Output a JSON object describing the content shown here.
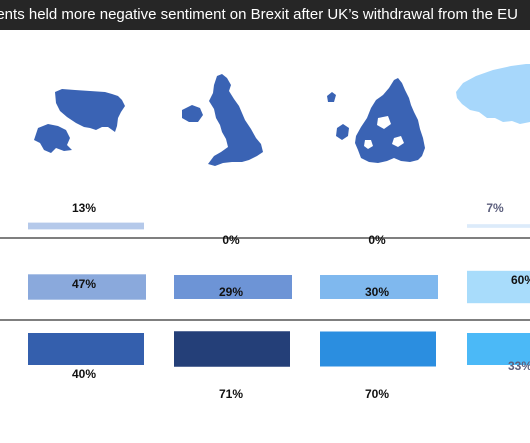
{
  "title": "dents held more negative sentiment on Brexit after UK’s withdrawal from the EU",
  "colors": {
    "title_background": "#262626",
    "title_text": "#ffffff",
    "map_fill": "#3a63b4",
    "divider": "#555555"
  },
  "regions": [
    {
      "icon": "usa-map-icon"
    },
    {
      "icon": "uk-map-icon"
    },
    {
      "icon": "europe-map-icon"
    },
    {
      "icon": "asia-map-icon"
    }
  ],
  "chart_data": {
    "type": "bar",
    "title": "dents held more negative sentiment on Brexit after UK’s withdrawal from the EU",
    "categories": [
      "",
      "",
      "",
      ""
    ],
    "ylim": [
      0,
      100
    ],
    "grid": false,
    "legend": "none",
    "series": [
      {
        "values": [
          13,
          0,
          0,
          7
        ],
        "labels": [
          "13%",
          "0%",
          "0%",
          "7%"
        ],
        "colors": [
          "#b5c9ea",
          "#b5c9ea",
          "#b5c9ea",
          "#dcebfa"
        ]
      },
      {
        "values": [
          47,
          29,
          30,
          60
        ],
        "labels": [
          "47%",
          "29%",
          "30%",
          "60%"
        ],
        "colors": [
          "#8aa9dc",
          "#6d94d6",
          "#7fb8ee",
          "#a8dcfb"
        ]
      },
      {
        "values": [
          40,
          71,
          70,
          33
        ],
        "labels": [
          "40%",
          "71%",
          "70%",
          "33%"
        ],
        "colors": [
          "#345fad",
          "#243f78",
          "#2b8ee0",
          "#4bb9f7"
        ]
      }
    ]
  }
}
